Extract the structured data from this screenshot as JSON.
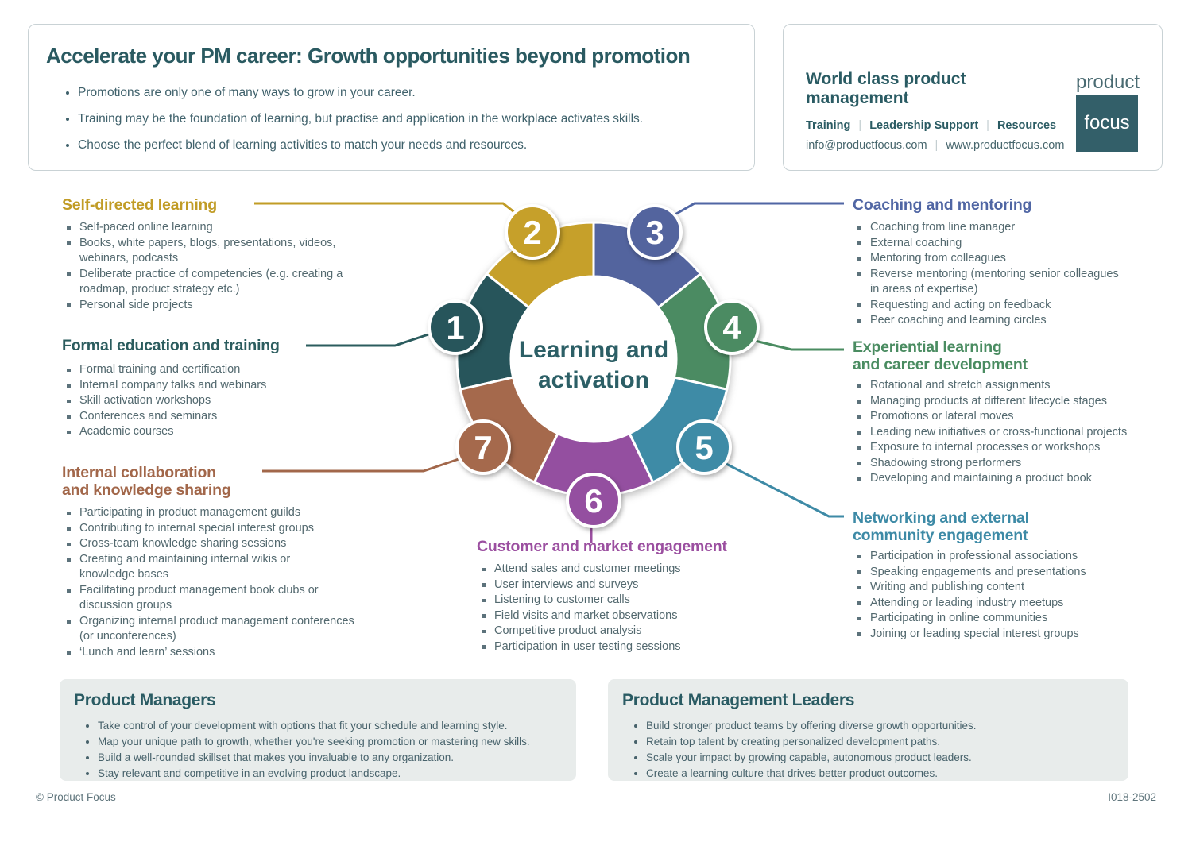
{
  "intro": {
    "title": "Accelerate your PM career: Growth opportunities beyond promotion",
    "bullets": [
      "Promotions are only one of many ways to grow in your career.",
      "Training may be the foundation of learning, but practise and application in the workplace activates skills.",
      "Choose the perfect blend of learning activities to match your needs and resources."
    ]
  },
  "brand": {
    "tagline": "World class product management",
    "services": [
      "Training",
      "Leadership Support",
      "Resources"
    ],
    "email": "info@productfocus.com",
    "website": "www.productfocus.com",
    "logo_word_top": "product",
    "logo_word_bottom": "focus",
    "logo_color": "#335f69"
  },
  "wheel": {
    "center_line1": "Learning and",
    "center_line2": "activation",
    "center_text_color": "#2c5f66",
    "segments": [
      {
        "number": "1",
        "color": "#27555b"
      },
      {
        "number": "2",
        "color": "#c6a02a"
      },
      {
        "number": "3",
        "color": "#53649e"
      },
      {
        "number": "4",
        "color": "#4b8b62"
      },
      {
        "number": "5",
        "color": "#3e8ba6"
      },
      {
        "number": "6",
        "color": "#944fa0"
      },
      {
        "number": "7",
        "color": "#a5694c"
      }
    ]
  },
  "categories": [
    {
      "number": "1",
      "title": "Formal education and training",
      "color": "#2b5c5e",
      "items": [
        "Formal training and certification",
        "Internal company talks and webinars",
        "Skill activation workshops",
        "Conferences and seminars",
        "Academic courses"
      ]
    },
    {
      "number": "2",
      "title": "Self-directed learning",
      "color": "#c19c26",
      "items": [
        "Self-paced online learning",
        "Books, white papers, blogs, presentations, videos,\nwebinars, podcasts",
        "Deliberate practice of competencies (e.g. creating a\nroadmap, product strategy etc.)",
        "Personal side projects"
      ]
    },
    {
      "number": "3",
      "title": "Coaching and mentoring",
      "color": "#5066a4",
      "items": [
        "Coaching from line manager",
        "External coaching",
        "Mentoring from colleagues",
        "Reverse mentoring (mentoring senior colleagues\nin areas of expertise)",
        "Requesting and acting on feedback",
        "Peer coaching and learning circles"
      ]
    },
    {
      "number": "4",
      "title": "Experiential learning\nand career development",
      "color": "#4a8c61",
      "items": [
        "Rotational and stretch assignments",
        "Managing products at different lifecycle stages",
        "Promotions or lateral moves",
        "Leading new initiatives or cross-functional projects",
        "Exposure to internal processes or workshops",
        "Shadowing strong performers",
        "Developing and maintaining a product book"
      ]
    },
    {
      "number": "5",
      "title": "Networking and external\ncommunity engagement",
      "color": "#3d8aa6",
      "items": [
        "Participation in professional associations",
        "Speaking engagements and presentations",
        "Writing and publishing content",
        "Attending or leading industry meetups",
        "Participating in online communities",
        "Joining or leading special interest groups"
      ]
    },
    {
      "number": "6",
      "title": "Customer and market engagement",
      "color": "#9b4fa0",
      "items": [
        "Attend sales and customer meetings",
        "User interviews and surveys",
        "Listening to customer calls",
        "Field visits and market observations",
        "Competitive product analysis",
        "Participation in user testing sessions"
      ]
    },
    {
      "number": "7",
      "title": "Internal collaboration\nand knowledge sharing",
      "color": "#a2674a",
      "items": [
        "Participating in product management guilds",
        "Contributing to internal special interest groups",
        "Cross-team knowledge sharing sessions",
        "Creating and maintaining internal wikis or\nknowledge bases",
        "Facilitating product management book clubs or\ndiscussion groups",
        "Organizing internal product management conferences\n(or unconferences)",
        "‘Lunch and learn’ sessions"
      ]
    }
  ],
  "audiences": [
    {
      "title": "Product Managers",
      "bullets": [
        "Take control of your development with options that fit your schedule and learning style.",
        "Map your unique path to growth, whether you're seeking promotion or mastering new skills.",
        "Build a well-rounded skillset that makes you invaluable to any organization.",
        "Stay relevant and competitive in an evolving product landscape."
      ]
    },
    {
      "title": "Product Management Leaders",
      "bullets": [
        "Build stronger product teams by offering diverse growth opportunities.",
        "Retain top talent by creating personalized development paths.",
        "Scale your impact by growing capable, autonomous product leaders.",
        "Create a learning culture that drives better product outcomes."
      ]
    }
  ],
  "footer": {
    "copyright": "© Product Focus",
    "code": "I018-2502"
  }
}
